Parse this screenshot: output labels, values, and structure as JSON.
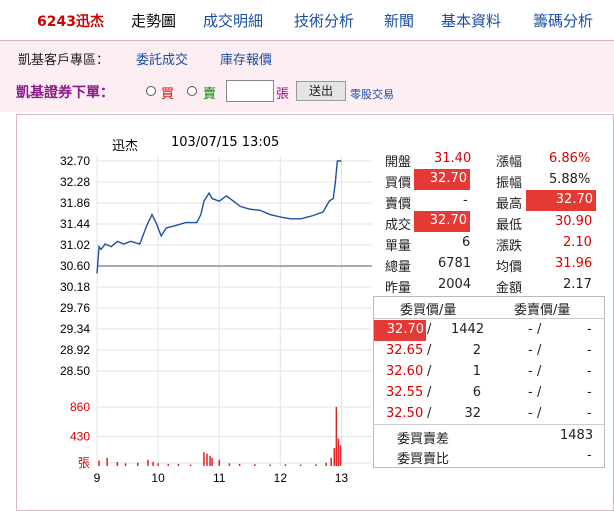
{
  "nav": {
    "stock": "6243迅杰",
    "items": [
      "走勢圖",
      "成交明細",
      "技術分析",
      "新聞",
      "基本資料",
      "籌碼分析"
    ]
  },
  "sub": {
    "label": "凱基客戶專區：",
    "link1": "委託成交",
    "link2": "庫存報價"
  },
  "order": {
    "title": "凱基證券下單：",
    "buy": "買",
    "sell": "賣",
    "unit": "張",
    "submit": "送出",
    "odd": "零股交易"
  },
  "chart_data": {
    "type": "line",
    "title": "迅杰",
    "datetime": "103/07/15 13:05",
    "price_ticks": [
      "32.70",
      "32.28",
      "31.86",
      "31.44",
      "31.02",
      "30.60",
      "30.18",
      "29.76",
      "29.34",
      "28.92",
      "28.50"
    ],
    "volume_ticks": [
      "860",
      "430",
      "張"
    ],
    "x_ticks": [
      "9",
      "10",
      "11",
      "12",
      "13"
    ],
    "reference_price": 30.6,
    "ylim": [
      28.5,
      32.7
    ],
    "price_series": [
      [
        0,
        30.6
      ],
      [
        2,
        31.1
      ],
      [
        4,
        31.05
      ],
      [
        8,
        31.15
      ],
      [
        14,
        31.1
      ],
      [
        20,
        31.2
      ],
      [
        26,
        31.15
      ],
      [
        33,
        31.2
      ],
      [
        42,
        31.15
      ],
      [
        49,
        31.5
      ],
      [
        54,
        31.7
      ],
      [
        58,
        31.55
      ],
      [
        63,
        31.3
      ],
      [
        68,
        31.45
      ],
      [
        78,
        31.5
      ],
      [
        87,
        31.55
      ],
      [
        98,
        31.55
      ],
      [
        102,
        31.7
      ],
      [
        105,
        31.95
      ],
      [
        110,
        32.1
      ],
      [
        113,
        32.0
      ],
      [
        120,
        31.95
      ],
      [
        127,
        32.05
      ],
      [
        134,
        31.95
      ],
      [
        141,
        31.85
      ],
      [
        150,
        31.8
      ],
      [
        160,
        31.78
      ],
      [
        170,
        31.7
      ],
      [
        181,
        31.65
      ],
      [
        190,
        31.62
      ],
      [
        200,
        31.62
      ],
      [
        212,
        31.68
      ],
      [
        222,
        31.75
      ],
      [
        228,
        31.95
      ],
      [
        232,
        32.0
      ],
      [
        234,
        32.3
      ],
      [
        236,
        32.7
      ],
      [
        240,
        32.7
      ]
    ],
    "volume_series": [
      [
        2,
        80
      ],
      [
        10,
        120
      ],
      [
        20,
        60
      ],
      [
        28,
        40
      ],
      [
        40,
        50
      ],
      [
        50,
        90
      ],
      [
        55,
        60
      ],
      [
        60,
        40
      ],
      [
        70,
        30
      ],
      [
        80,
        30
      ],
      [
        92,
        20
      ],
      [
        105,
        200
      ],
      [
        108,
        180
      ],
      [
        111,
        150
      ],
      [
        113,
        120
      ],
      [
        120,
        90
      ],
      [
        130,
        40
      ],
      [
        140,
        30
      ],
      [
        155,
        25
      ],
      [
        170,
        20
      ],
      [
        185,
        25
      ],
      [
        200,
        20
      ],
      [
        215,
        25
      ],
      [
        225,
        50
      ],
      [
        230,
        120
      ],
      [
        233,
        260
      ],
      [
        235,
        860
      ],
      [
        237,
        400
      ],
      [
        239,
        300
      ]
    ]
  },
  "quote": {
    "open_l": "開盤",
    "open": "31.40",
    "chg_pct_l": "漲幅",
    "chg_pct": "6.86%",
    "bid_l": "買價",
    "bid": "32.70",
    "amp_l": "振幅",
    "amp": "5.88%",
    "ask_l": "賣價",
    "ask": "-",
    "high_l": "最高",
    "high": "32.70",
    "last_l": "成交",
    "last": "32.70",
    "low_l": "最低",
    "low": "30.90",
    "vol_l": "單量",
    "vol": "6",
    "chg_l": "漲跌",
    "chg": "2.10",
    "tvol_l": "總量",
    "tvol": "6781",
    "avg_l": "均價",
    "avg": "31.96",
    "yvol_l": "昨量",
    "yvol": "2004",
    "amt_l": "金額",
    "amt": "2.17"
  },
  "orderbook": {
    "h_bid": "委買價/量",
    "h_ask": "委賣價/量",
    "rows": [
      {
        "bp": "32.70",
        "bq": "1442",
        "ap": "-",
        "aq": "-"
      },
      {
        "bp": "32.65",
        "bq": "2",
        "ap": "-",
        "aq": "-"
      },
      {
        "bp": "32.60",
        "bq": "1",
        "ap": "-",
        "aq": "-"
      },
      {
        "bp": "32.55",
        "bq": "6",
        "ap": "-",
        "aq": "-"
      },
      {
        "bp": "32.50",
        "bq": "32",
        "ap": "-",
        "aq": "-"
      }
    ],
    "diff_l": "委買賣差",
    "diff": "1483",
    "ratio_l": "委買賣比",
    "ratio": "-"
  }
}
